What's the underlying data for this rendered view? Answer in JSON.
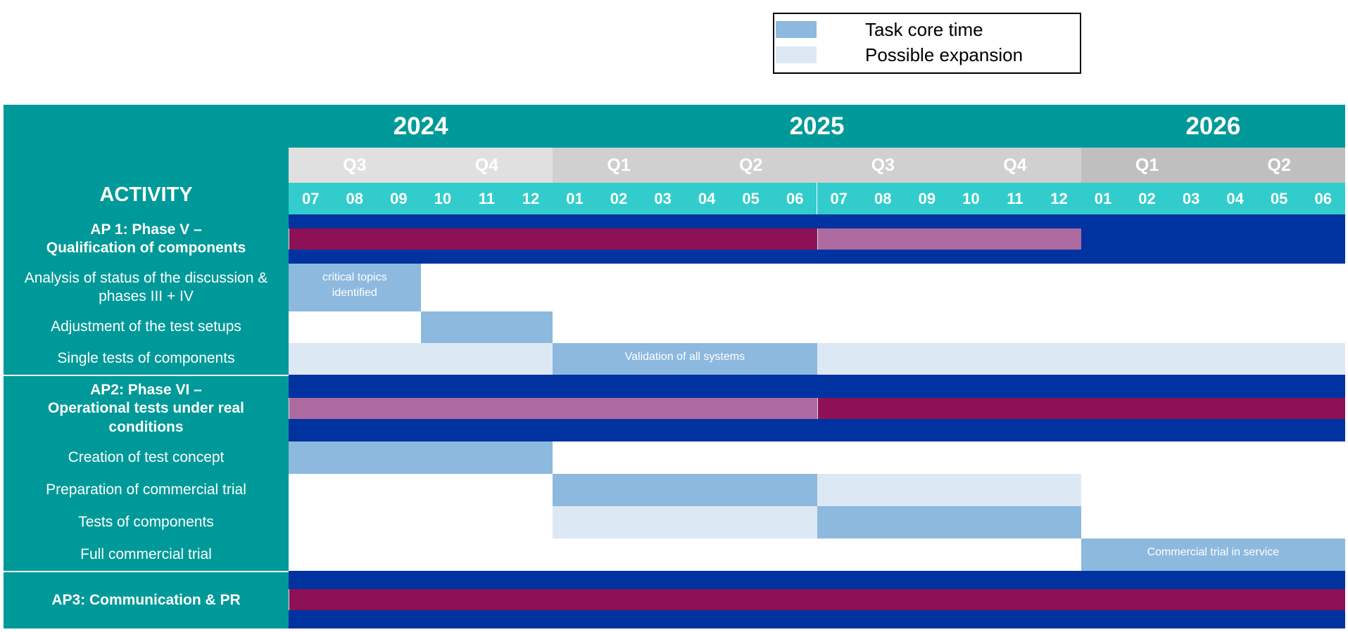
{
  "chart_data": {
    "type": "gantt",
    "legend": [
      {
        "label": "Task core time",
        "color": "#8db9df"
      },
      {
        "label": "Possible expansion",
        "color": "#dde8f5"
      }
    ],
    "header": "ACTIVITY",
    "timeline": [
      {
        "year": "2024",
        "color": "#e0e0e0",
        "quarters": [
          {
            "label": "Q3",
            "months": [
              "07",
              "08",
              "09"
            ]
          },
          {
            "label": "Q4",
            "months": [
              "10",
              "11",
              "12"
            ]
          }
        ]
      },
      {
        "year": "2025",
        "color": "#d0d0d0",
        "quarters": [
          {
            "label": "Q1",
            "months": [
              "01",
              "02",
              "03"
            ]
          },
          {
            "label": "Q2",
            "months": [
              "04",
              "05",
              "06"
            ]
          },
          {
            "label": "Q3",
            "months": [
              "07",
              "08",
              "09"
            ]
          },
          {
            "label": "Q4",
            "months": [
              "10",
              "11",
              "12"
            ]
          }
        ]
      },
      {
        "year": "2026",
        "color": "#bfbfbf",
        "quarters": [
          {
            "label": "Q1",
            "months": [
              "01",
              "02",
              "03"
            ]
          },
          {
            "label": "Q2",
            "months": [
              "04",
              "05",
              "06"
            ]
          }
        ]
      }
    ],
    "rows": [
      {
        "label": "AP 1: Phase V –\nQualification of components",
        "kind": "phase",
        "bars": [
          {
            "start": "2024-07",
            "end": "2025-06",
            "color": "#8e1157"
          },
          {
            "start": "2025-07",
            "end": "2025-12",
            "color": "#ad6aa0"
          }
        ]
      },
      {
        "label": "Analysis of status of the discussion &\nphases III + IV",
        "kind": "task",
        "bars": [
          {
            "start": "2024-07",
            "end": "2024-09",
            "color": "#8db9df",
            "label": "critical topics\nidentified"
          }
        ]
      },
      {
        "label": "Adjustment of the test setups",
        "kind": "task",
        "bars": [
          {
            "start": "2024-10",
            "end": "2024-12",
            "color": "#8db9df"
          }
        ]
      },
      {
        "label": "Single tests of components",
        "kind": "task",
        "bars": [
          {
            "start": "2024-07",
            "end": "2024-12",
            "color": "#dde8f5"
          },
          {
            "start": "2025-01",
            "end": "2025-06",
            "color": "#8db9df",
            "label": "Validation of all systems"
          },
          {
            "start": "2025-07",
            "end": "2026-06",
            "color": "#dde8f5"
          }
        ]
      },
      {
        "label": "AP2: Phase VI –\nOperational tests under real\nconditions",
        "kind": "phase",
        "bars": [
          {
            "start": "2024-07",
            "end": "2025-06",
            "color": "#ad6aa0"
          },
          {
            "start": "2025-07",
            "end": "2026-06",
            "color": "#8e1157"
          }
        ]
      },
      {
        "label": "Creation of test concept",
        "kind": "task",
        "bars": [
          {
            "start": "2024-07",
            "end": "2024-12",
            "color": "#8db9df"
          }
        ]
      },
      {
        "label": "Preparation of commercial trial",
        "kind": "task",
        "bars": [
          {
            "start": "2025-01",
            "end": "2025-06",
            "color": "#8db9df"
          },
          {
            "start": "2025-07",
            "end": "2025-12",
            "color": "#dde8f5"
          }
        ]
      },
      {
        "label": "Tests of components",
        "kind": "task",
        "bars": [
          {
            "start": "2025-01",
            "end": "2025-06",
            "color": "#dde8f5"
          },
          {
            "start": "2025-07",
            "end": "2025-12",
            "color": "#8db9df"
          }
        ]
      },
      {
        "label": "Full commercial trial",
        "kind": "task",
        "bars": [
          {
            "start": "2026-01",
            "end": "2026-06",
            "color": "#8db9df",
            "label": "Commercial trial in service"
          }
        ]
      },
      {
        "label": "AP3: Communication & PR",
        "kind": "phase",
        "bars": [
          {
            "start": "2024-07",
            "end": "2026-06",
            "color": "#8e1157"
          }
        ]
      }
    ]
  }
}
